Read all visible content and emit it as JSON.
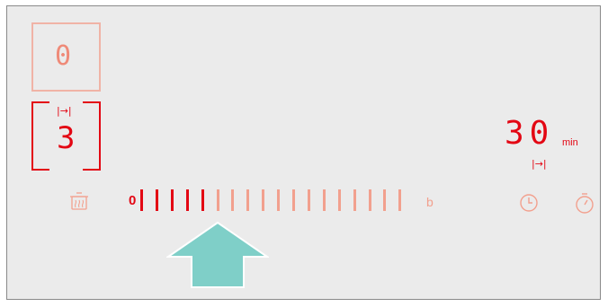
{
  "cooktop": {
    "zone_top": {
      "display": "0"
    },
    "zone_bottom": {
      "display": "3",
      "symbol": "|→|"
    },
    "timer": {
      "digits": "30",
      "unit": "min",
      "symbol": "|→|"
    },
    "slider": {
      "start_label": "0",
      "end_label": "b",
      "total_segments": 18,
      "active_segments": 5,
      "level_fraction": 0.28
    },
    "icons": [
      "keep-warm-icon",
      "clock-icon",
      "stopwatch-icon",
      "up-arrow-icon"
    ],
    "colors": {
      "active": "#e30613",
      "inactive": "#f2a08e",
      "arrow": "#7fcfc8",
      "panel": "#ebebeb"
    }
  }
}
